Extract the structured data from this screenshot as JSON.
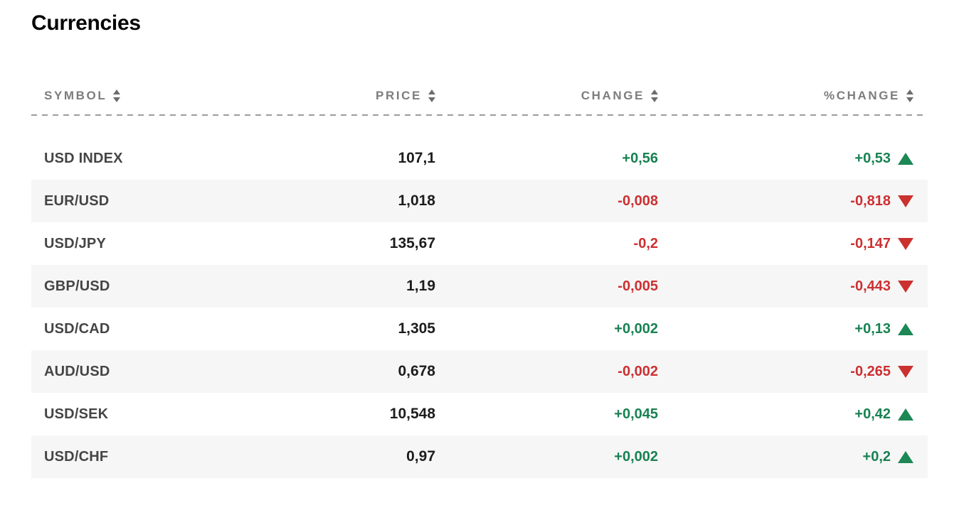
{
  "title": "Currencies",
  "colors": {
    "positive": "#188152",
    "negative": "#cc3032",
    "header_text": "#7d7d7d",
    "alt_row_background": "#f6f6f6",
    "symbol_text": "#454545",
    "price_text": "#1d1d1d"
  },
  "table": {
    "columns": [
      {
        "key": "symbol",
        "label": "SYMBOL",
        "sortable": true
      },
      {
        "key": "price",
        "label": "PRICE",
        "sortable": true
      },
      {
        "key": "change",
        "label": "CHANGE",
        "sortable": true
      },
      {
        "key": "pct_change",
        "label": "%CHANGE",
        "sortable": true
      }
    ],
    "rows": [
      {
        "symbol": "USD INDEX",
        "price": "107,1",
        "change": "+0,56",
        "pct_change": "+0,53",
        "direction": "up"
      },
      {
        "symbol": "EUR/USD",
        "price": "1,018",
        "change": "-0,008",
        "pct_change": "-0,818",
        "direction": "down"
      },
      {
        "symbol": "USD/JPY",
        "price": "135,67",
        "change": "-0,2",
        "pct_change": "-0,147",
        "direction": "down"
      },
      {
        "symbol": "GBP/USD",
        "price": "1,19",
        "change": "-0,005",
        "pct_change": "-0,443",
        "direction": "down"
      },
      {
        "symbol": "USD/CAD",
        "price": "1,305",
        "change": "+0,002",
        "pct_change": "+0,13",
        "direction": "up"
      },
      {
        "symbol": "AUD/USD",
        "price": "0,678",
        "change": "-0,002",
        "pct_change": "-0,265",
        "direction": "down"
      },
      {
        "symbol": "USD/SEK",
        "price": "10,548",
        "change": "+0,045",
        "pct_change": "+0,42",
        "direction": "up"
      },
      {
        "symbol": "USD/CHF",
        "price": "0,97",
        "change": "+0,002",
        "pct_change": "+0,2",
        "direction": "up"
      }
    ]
  }
}
